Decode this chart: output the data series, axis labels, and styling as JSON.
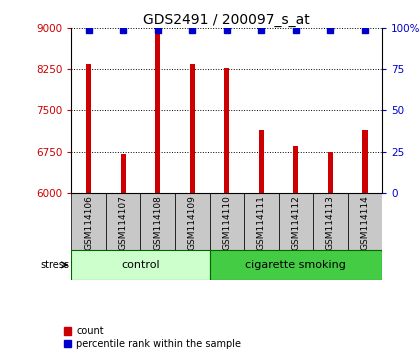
{
  "title": "GDS2491 / 200097_s_at",
  "samples": [
    "GSM114106",
    "GSM114107",
    "GSM114108",
    "GSM114109",
    "GSM114110",
    "GSM114111",
    "GSM114112",
    "GSM114113",
    "GSM114114"
  ],
  "counts": [
    8350,
    6700,
    8950,
    8340,
    8280,
    7150,
    6850,
    6750,
    7150
  ],
  "percentile_ranks": [
    99,
    99,
    99,
    99,
    99,
    99,
    99,
    99,
    99
  ],
  "ylim_left": [
    6000,
    9000
  ],
  "ylim_right": [
    0,
    100
  ],
  "yticks_left": [
    6000,
    6750,
    7500,
    8250,
    9000
  ],
  "yticks_right": [
    0,
    25,
    50,
    75,
    100
  ],
  "bar_color": "#cc0000",
  "dot_color": "#0000cc",
  "grid_color": "#000000",
  "title_color": "#000000",
  "left_tick_color": "#cc0000",
  "right_tick_color": "#0000cc",
  "groups": [
    {
      "label": "control",
      "start": 0,
      "end": 4,
      "color": "#ccffcc"
    },
    {
      "label": "cigarette smoking",
      "start": 4,
      "end": 9,
      "color": "#44cc44"
    }
  ],
  "label_bg_color": "#c8c8c8",
  "stress_label": "stress",
  "legend_count_label": "count",
  "legend_pct_label": "percentile rank within the sample",
  "bar_width": 0.15
}
